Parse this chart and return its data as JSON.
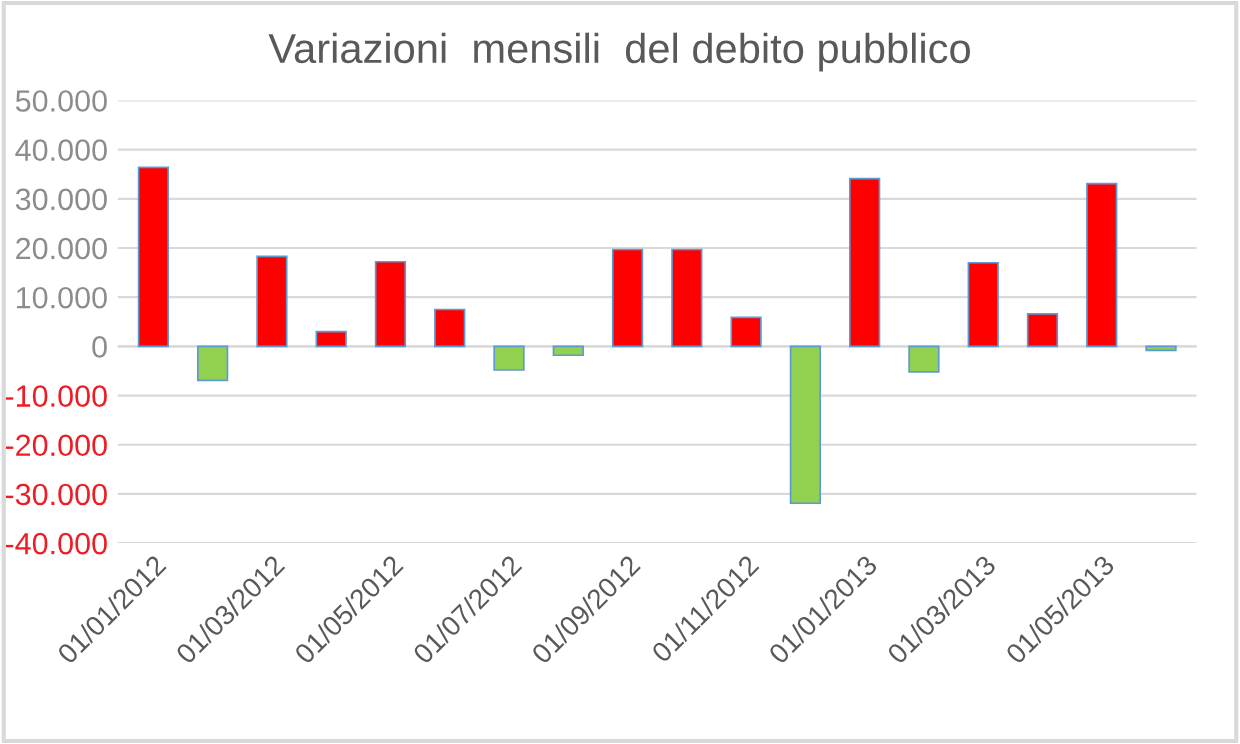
{
  "chart_data": {
    "type": "bar",
    "title": "Variazioni  mensili  del debito pubblico",
    "categories": [
      "01/01/2012",
      null,
      "01/03/2012",
      null,
      "01/05/2012",
      null,
      "01/07/2012",
      null,
      "01/09/2012",
      null,
      "01/11/2012",
      null,
      "01/01/2013",
      null,
      "01/03/2013",
      null,
      "01/05/2013",
      null
    ],
    "values": [
      36400,
      -6900,
      18300,
      3000,
      17200,
      7500,
      -4800,
      -1800,
      19700,
      19700,
      5900,
      -31900,
      34100,
      -5200,
      17000,
      6600,
      33100,
      -800
    ],
    "colors": [
      "#ff0000",
      "#92d050",
      "#ff0000",
      "#ff0000",
      "#ff0000",
      "#ff0000",
      "#92d050",
      "#92d050",
      "#ff0000",
      "#ff0000",
      "#ff0000",
      "#92d050",
      "#ff0000",
      "#92d050",
      "#ff0000",
      "#ff0000",
      "#ff0000",
      "#92d050"
    ],
    "ylim": [
      -40000,
      50000
    ],
    "yticks": [
      {
        "value": -40000,
        "label": "-40.000"
      },
      {
        "value": -30000,
        "label": "-30.000"
      },
      {
        "value": -20000,
        "label": "-20.000"
      },
      {
        "value": -10000,
        "label": "-10.000"
      },
      {
        "value": 0,
        "label": "0"
      },
      {
        "value": 10000,
        "label": "10.000"
      },
      {
        "value": 20000,
        "label": "20.000"
      },
      {
        "value": 30000,
        "label": "30.000"
      },
      {
        "value": 40000,
        "label": "40.000"
      },
      {
        "value": 50000,
        "label": "50.000"
      }
    ],
    "grid": "y",
    "legend": false
  }
}
